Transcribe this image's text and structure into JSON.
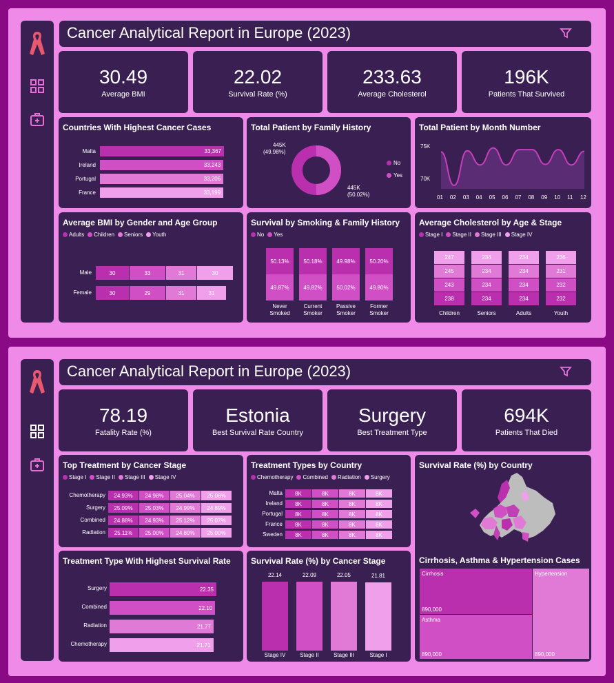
{
  "colors": {
    "page_bg": "#8a0a86",
    "board_bg": "#ef8ae8",
    "panel_bg": "#3a2052",
    "c1": "#b92fad",
    "c2": "#d14fc5",
    "c3": "#e07ad6",
    "c4": "#f0a0ea"
  },
  "icons": {
    "logo": "pink-ribbon-icon",
    "nav_dashboard": "grid-icon",
    "nav_medical": "medical-kit-icon",
    "filter": "filter-icon"
  },
  "report1": {
    "title": "Cancer Analytical Report in Europe (2023)",
    "kpis": [
      {
        "value": "30.49",
        "label": "Average BMI"
      },
      {
        "value": "22.02",
        "label": "Survival Rate (%)"
      },
      {
        "value": "233.63",
        "label": "Average Cholesterol"
      },
      {
        "value": "196K",
        "label": "Patients That Survived"
      }
    ],
    "countries": {
      "title": "Countries With Highest Cancer Cases",
      "rows": [
        {
          "name": "Malta",
          "value": "33,367",
          "n": 33367
        },
        {
          "name": "Ireland",
          "value": "33,243",
          "n": 33243
        },
        {
          "name": "Portugal",
          "value": "33,206",
          "n": 33206
        },
        {
          "name": "France",
          "value": "33,199",
          "n": 33199
        }
      ]
    },
    "family": {
      "title": "Total Patient by Family History",
      "legend": [
        "No",
        "Yes"
      ],
      "labels": [
        {
          "value": "445K",
          "pct": "(49.98%)"
        },
        {
          "value": "445K",
          "pct": "(50.02%)"
        }
      ],
      "shares": [
        49.98,
        50.02
      ]
    },
    "month": {
      "title": "Total Patient by Month Number",
      "y_ticks": [
        "75K",
        "70K"
      ],
      "x_ticks": [
        "01",
        "02",
        "03",
        "04",
        "05",
        "06",
        "07",
        "08",
        "09",
        "10",
        "11",
        "12"
      ],
      "values": [
        75.5,
        69.6,
        75.7,
        73.2,
        76.2,
        73.2,
        75.9,
        75.9,
        73.3,
        75.9,
        73.2,
        75.6
      ]
    },
    "bmi": {
      "title": "Average BMI by Gender and Age Group",
      "legend": [
        "Adults",
        "Children",
        "Seniors",
        "Youth"
      ],
      "rows": [
        {
          "name": "Male",
          "values": [
            "30",
            "33",
            "31",
            "30"
          ]
        },
        {
          "name": "Female",
          "values": [
            "30",
            "29",
            "31",
            "31"
          ]
        }
      ]
    },
    "smoking": {
      "title": "Survival by Smoking & Family History",
      "legend": [
        "No",
        "Yes"
      ],
      "groups": [
        {
          "name1": "Never",
          "name2": "Smoked",
          "top": "50.13%",
          "bottom": "49.87%"
        },
        {
          "name1": "Current",
          "name2": "Smoker",
          "top": "50.18%",
          "bottom": "49.82%"
        },
        {
          "name1": "Passive",
          "name2": "Smoker",
          "top": "49.98%",
          "bottom": "50.02%"
        },
        {
          "name1": "Former",
          "name2": "Smoker",
          "top": "50.20%",
          "bottom": "49.80%"
        }
      ]
    },
    "cholesterol": {
      "title": "Average Cholesterol by Age & Stage",
      "legend": [
        "Stage I",
        "Stage II",
        "Stage III",
        "Stage IV"
      ],
      "groups": [
        {
          "name": "Children",
          "values": [
            "247",
            "245",
            "243",
            "238"
          ]
        },
        {
          "name": "Seniors",
          "values": [
            "234",
            "234",
            "234",
            "234"
          ]
        },
        {
          "name": "Adults",
          "values": [
            "234",
            "234",
            "234",
            "234"
          ]
        },
        {
          "name": "Youth",
          "values": [
            "236",
            "231",
            "232",
            "232"
          ]
        }
      ]
    }
  },
  "report2": {
    "title": "Cancer Analytical Report in Europe (2023)",
    "kpis": [
      {
        "value": "78.19",
        "label": "Fatality Rate (%)"
      },
      {
        "value": "Estonia",
        "label": "Best Survival Rate Country"
      },
      {
        "value": "Surgery",
        "label": "Best Treatment Type"
      },
      {
        "value": "694K",
        "label": "Patients That Died"
      }
    ],
    "treat_stage": {
      "title": "Top Treatment by Cancer Stage",
      "legend": [
        "Stage I",
        "Stage II",
        "Stage III",
        "Stage IV"
      ],
      "rows": [
        {
          "name": "Chemotherapy",
          "values": [
            "24.93%",
            "24.98%",
            "25.04%",
            "25.06%"
          ]
        },
        {
          "name": "Surgery",
          "values": [
            "25.09%",
            "25.03%",
            "24.99%",
            "24.89%"
          ]
        },
        {
          "name": "Combined",
          "values": [
            "24.88%",
            "24.93%",
            "25.12%",
            "25.07%"
          ]
        },
        {
          "name": "Radiation",
          "values": [
            "25.11%",
            "25.00%",
            "24.89%",
            "25.00%"
          ]
        }
      ]
    },
    "treat_country": {
      "title": "Treatment Types by Country",
      "legend": [
        "Chemotherapy",
        "Combined",
        "Radiation",
        "Surgery"
      ],
      "rows": [
        {
          "name": "Malta",
          "values": [
            "8K",
            "8K",
            "8K",
            "8K"
          ]
        },
        {
          "name": "Ireland",
          "values": [
            "8K",
            "8K",
            "8K",
            "8K"
          ]
        },
        {
          "name": "Portugal",
          "values": [
            "8K",
            "8K",
            "8K",
            "8K"
          ]
        },
        {
          "name": "France",
          "values": [
            "8K",
            "8K",
            "8K",
            "8K"
          ]
        },
        {
          "name": "Sweden",
          "values": [
            "8K",
            "8K",
            "8K",
            "8K"
          ]
        }
      ]
    },
    "map": {
      "title": "Survival Rate (%) by Country"
    },
    "best_treat": {
      "title": "Treatment Type With Highest Survival Rate",
      "rows": [
        {
          "name": "Surgery",
          "value": "22.35",
          "n": 22.35
        },
        {
          "name": "Combined",
          "value": "22.10",
          "n": 22.1
        },
        {
          "name": "Radiation",
          "value": "21.77",
          "n": 21.77
        },
        {
          "name": "Chemotherapy",
          "value": "21.71",
          "n": 21.71
        }
      ]
    },
    "stage_survival": {
      "title": "Survival Rate (%) by Cancer Stage",
      "bars": [
        {
          "name": "Stage IV",
          "value": "22.14",
          "n": 22.14
        },
        {
          "name": "Stage II",
          "value": "22.09",
          "n": 22.09
        },
        {
          "name": "Stage III",
          "value": "22.05",
          "n": 22.05
        },
        {
          "name": "Stage I",
          "value": "21.81",
          "n": 21.81
        }
      ]
    },
    "treemap": {
      "title": "Cirrhosis, Asthma & Hypertension Cases",
      "cells": [
        {
          "name": "Cirrhosis",
          "value": "890,000"
        },
        {
          "name": "Asthma",
          "value": "890,000"
        },
        {
          "name": "Hypertension",
          "value": "890,000"
        }
      ]
    }
  }
}
